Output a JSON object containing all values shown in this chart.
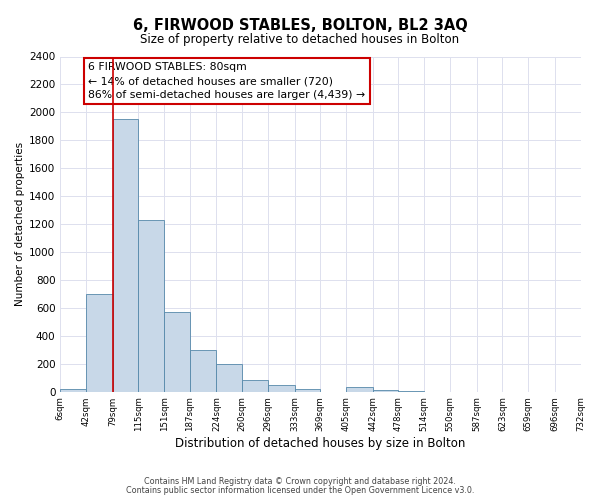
{
  "title": "6, FIRWOOD STABLES, BOLTON, BL2 3AQ",
  "subtitle": "Size of property relative to detached houses in Bolton",
  "xlabel": "Distribution of detached houses by size in Bolton",
  "ylabel": "Number of detached properties",
  "bar_edges": [
    6,
    42,
    79,
    115,
    151,
    187,
    224,
    260,
    296,
    333,
    369,
    405,
    442,
    478,
    514,
    550,
    587,
    623,
    659,
    696,
    732
  ],
  "bar_heights": [
    20,
    700,
    1950,
    1230,
    570,
    300,
    200,
    85,
    45,
    20,
    0,
    35,
    15,
    5,
    0,
    0,
    0,
    0,
    0,
    0
  ],
  "bar_color": "#c8d8e8",
  "bar_edge_color": "#5588aa",
  "property_line_x": 80,
  "property_line_color": "#cc0000",
  "annotation_line1": "6 FIRWOOD STABLES: 80sqm",
  "annotation_line2": "← 14% of detached houses are smaller (720)",
  "annotation_line3": "86% of semi-detached houses are larger (4,439) →",
  "annotation_box_color": "#cc0000",
  "ylim": [
    0,
    2400
  ],
  "yticks": [
    0,
    200,
    400,
    600,
    800,
    1000,
    1200,
    1400,
    1600,
    1800,
    2000,
    2200,
    2400
  ],
  "tick_labels": [
    "6sqm",
    "42sqm",
    "79sqm",
    "115sqm",
    "151sqm",
    "187sqm",
    "224sqm",
    "260sqm",
    "296sqm",
    "333sqm",
    "369sqm",
    "405sqm",
    "442sqm",
    "478sqm",
    "514sqm",
    "550sqm",
    "587sqm",
    "623sqm",
    "659sqm",
    "696sqm",
    "732sqm"
  ],
  "footer_line1": "Contains HM Land Registry data © Crown copyright and database right 2024.",
  "footer_line2": "Contains public sector information licensed under the Open Government Licence v3.0.",
  "background_color": "#ffffff",
  "grid_color": "#dde0ee"
}
